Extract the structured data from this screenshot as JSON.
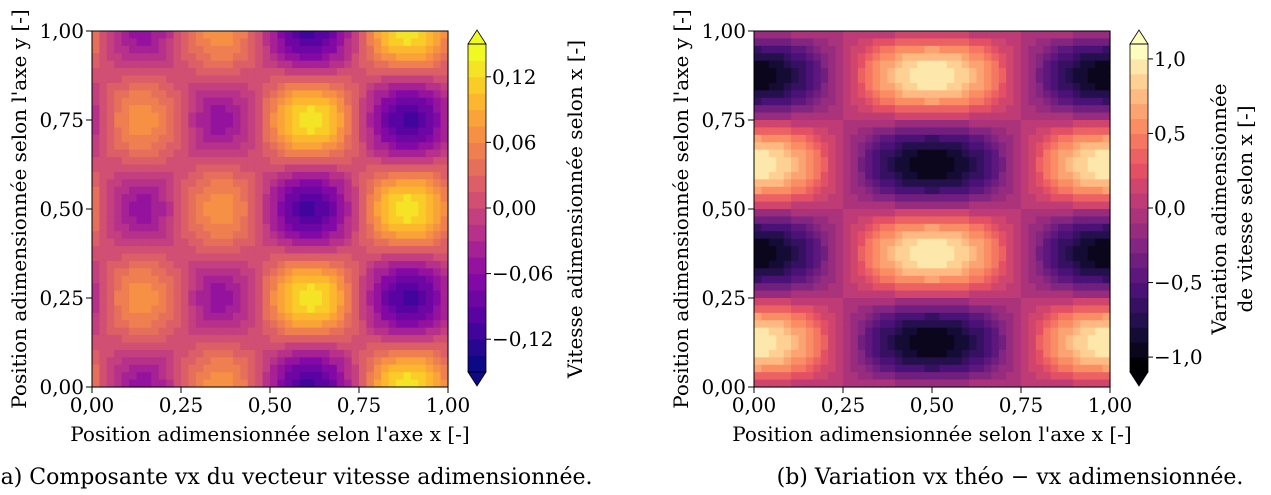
{
  "chart_data": [
    {
      "type": "heatmap",
      "xlabel": "Position adimensionnée selon l'axe x [-]",
      "ylabel": "Position adimensionnée selon l'axe y [-]",
      "xlim": [
        0,
        1
      ],
      "ylim": [
        0,
        1
      ],
      "xticks": [
        "0,00",
        "0,25",
        "0,50",
        "0,75",
        "1,00"
      ],
      "yticks": [
        "0,00",
        "0,25",
        "0,50",
        "0,75",
        "1,00"
      ],
      "colorbar": {
        "label": "Vitesse adimensionnée selon x [-]",
        "ticks": [
          "−0,12",
          "−0,06",
          "0,00",
          "0,06",
          "0,12"
        ],
        "range": [
          -0.15,
          0.15
        ],
        "extend": "both",
        "colormap": "plasma"
      },
      "caption": "(a) Composante vx du vecteur vitesse adimensionnée."
    },
    {
      "type": "heatmap",
      "xlabel": "Position adimensionnée selon l'axe x [-]",
      "ylabel": "Position adimensionnée selon l'axe y [-]",
      "xlim": [
        0,
        1
      ],
      "ylim": [
        0,
        1
      ],
      "xticks": [
        "0,00",
        "0,25",
        "0,50",
        "0,75",
        "1,00"
      ],
      "yticks": [
        "0,00",
        "0,25",
        "0,50",
        "0,75",
        "1,00"
      ],
      "colorbar": {
        "label_line1": "Variation adimensionnée",
        "label_line2": "de vitesse selon x [-]",
        "ticks": [
          "−1,0",
          "−0,5",
          "0,0",
          "0,5",
          "1,0"
        ],
        "range": [
          -1.1,
          1.1
        ],
        "extend": "both",
        "colormap": "magma"
      },
      "caption": "(b) Variation vx théo − vx adimensionnée."
    }
  ]
}
